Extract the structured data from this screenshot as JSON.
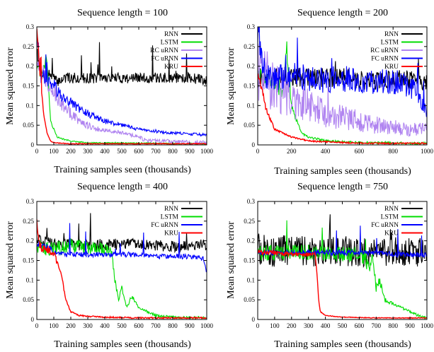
{
  "chart_data": [
    {
      "type": "line",
      "title": "Sequence length = 100",
      "xlabel": "Training samples seen (thousands)",
      "ylabel": "Mean squared error",
      "xlim": [
        0,
        1000
      ],
      "ylim": [
        0,
        0.3
      ],
      "xticks": [
        "0",
        "100",
        "200",
        "300",
        "400",
        "500",
        "600",
        "700",
        "800",
        "900",
        "1000"
      ],
      "yticks": [
        "0",
        "0.05",
        "0.1",
        "0.15",
        "0.2",
        "0.25",
        "0.3"
      ],
      "legend_position": "top-right",
      "series": [
        {
          "name": "RNN",
          "color": "#000000",
          "x": [
            0,
            15,
            40,
            80,
            120,
            160,
            200,
            300,
            400,
            500,
            600,
            700,
            800,
            900,
            1000
          ],
          "y": [
            0.25,
            0.2,
            0.18,
            0.18,
            0.16,
            0.17,
            0.17,
            0.17,
            0.17,
            0.17,
            0.17,
            0.17,
            0.17,
            0.17,
            0.165
          ],
          "noise": 0.008
        },
        {
          "name": "LSTM",
          "color": "#00dd00",
          "x": [
            0,
            30,
            55,
            70,
            80,
            100,
            120,
            150,
            200,
            300,
            400,
            500,
            600,
            700,
            800,
            900,
            1000
          ],
          "y": [
            0.2,
            0.17,
            0.22,
            0.15,
            0.06,
            0.04,
            0.02,
            0.015,
            0.01,
            0.005,
            0.005,
            0.005,
            0.004,
            0.004,
            0.003,
            0.003,
            0.003
          ],
          "noise": 0.006
        },
        {
          "name": "RC uRNN",
          "color": "#b084f0",
          "x": [
            0,
            30,
            60,
            100,
            150,
            200,
            250,
            300,
            350,
            400,
            450,
            500,
            550,
            600,
            650,
            700,
            800,
            900,
            1000
          ],
          "y": [
            0.22,
            0.18,
            0.17,
            0.14,
            0.1,
            0.08,
            0.06,
            0.05,
            0.04,
            0.04,
            0.035,
            0.03,
            0.025,
            0.02,
            0.01,
            0.01,
            0.008,
            0.006,
            0.005
          ],
          "noise": 0.018
        },
        {
          "name": "FC uRNN",
          "color": "#0000ff",
          "x": [
            0,
            20,
            50,
            100,
            150,
            200,
            250,
            300,
            350,
            400,
            450,
            500,
            550,
            600,
            650,
            700,
            800,
            900,
            1000
          ],
          "y": [
            0.3,
            0.18,
            0.17,
            0.15,
            0.12,
            0.11,
            0.09,
            0.08,
            0.07,
            0.06,
            0.055,
            0.05,
            0.045,
            0.04,
            0.035,
            0.035,
            0.03,
            0.028,
            0.025
          ],
          "noise": 0.012
        },
        {
          "name": "KRU",
          "color": "#ff0000",
          "x": [
            0,
            20,
            40,
            60,
            80,
            100,
            150,
            200,
            300,
            400,
            500,
            600,
            700,
            800,
            900,
            1000
          ],
          "y": [
            0.3,
            0.17,
            0.08,
            0.03,
            0.01,
            0.006,
            0.004,
            0.003,
            0.003,
            0.003,
            0.003,
            0.003,
            0.003,
            0.003,
            0.003,
            0.003
          ],
          "noise": 0.003
        }
      ]
    },
    {
      "type": "line",
      "title": "Sequence length = 200",
      "xlabel": "Training samples seen (thousands)",
      "ylabel": "Mean squared error",
      "xlim": [
        0,
        1000
      ],
      "ylim": [
        0,
        0.3
      ],
      "xticks": [
        "0",
        "200",
        "400",
        "600",
        "800",
        "1000"
      ],
      "yticks": [
        "0",
        "0.05",
        "0.1",
        "0.15",
        "0.2",
        "0.25",
        "0.3"
      ],
      "legend_position": "top-right",
      "series": [
        {
          "name": "RNN",
          "color": "#000000",
          "x": [
            0,
            100,
            200,
            300,
            400,
            500,
            600,
            700,
            800,
            900,
            1000
          ],
          "y": [
            0.17,
            0.17,
            0.17,
            0.17,
            0.17,
            0.17,
            0.165,
            0.165,
            0.165,
            0.165,
            0.16
          ],
          "noise": 0.015
        },
        {
          "name": "LSTM",
          "color": "#00dd00",
          "x": [
            0,
            50,
            100,
            150,
            170,
            200,
            230,
            260,
            300,
            400,
            500,
            600,
            700,
            800,
            900,
            1000
          ],
          "y": [
            0.18,
            0.17,
            0.15,
            0.13,
            0.25,
            0.1,
            0.06,
            0.03,
            0.02,
            0.01,
            0.008,
            0.006,
            0.005,
            0.005,
            0.004,
            0.004
          ],
          "noise": 0.01
        },
        {
          "name": "RC uRNN",
          "color": "#b084f0",
          "x": [
            0,
            50,
            100,
            150,
            200,
            300,
            400,
            500,
            600,
            700,
            800,
            900,
            1000
          ],
          "y": [
            0.2,
            0.17,
            0.15,
            0.13,
            0.11,
            0.1,
            0.08,
            0.07,
            0.06,
            0.05,
            0.045,
            0.04,
            0.04
          ],
          "noise": 0.045
        },
        {
          "name": "FC uRNN",
          "color": "#0000ff",
          "x": [
            0,
            50,
            100,
            200,
            300,
            400,
            500,
            600,
            700,
            800,
            900,
            950,
            1000
          ],
          "y": [
            0.28,
            0.17,
            0.17,
            0.18,
            0.17,
            0.165,
            0.17,
            0.16,
            0.16,
            0.16,
            0.15,
            0.13,
            0.08
          ],
          "noise": 0.02
        },
        {
          "name": "KRU",
          "color": "#ff0000",
          "x": [
            0,
            20,
            50,
            80,
            100,
            150,
            200,
            300,
            400,
            500,
            600,
            700,
            800,
            900,
            1000
          ],
          "y": [
            0.18,
            0.15,
            0.09,
            0.06,
            0.04,
            0.03,
            0.02,
            0.01,
            0.008,
            0.006,
            0.005,
            0.004,
            0.004,
            0.004,
            0.004
          ],
          "noise": 0.006
        }
      ]
    },
    {
      "type": "line",
      "title": "Sequence length = 400",
      "xlabel": "Training samples seen (thousands)",
      "ylabel": "Mean squared error",
      "xlim": [
        0,
        1000
      ],
      "ylim": [
        0,
        0.3
      ],
      "xticks": [
        "0",
        "100",
        "200",
        "300",
        "400",
        "500",
        "600",
        "700",
        "800",
        "900",
        "1000"
      ],
      "yticks": [
        "0",
        "0.05",
        "0.1",
        "0.15",
        "0.2",
        "0.25",
        "0.3"
      ],
      "legend_position": "top-right",
      "series": [
        {
          "name": "RNN",
          "color": "#000000",
          "x": [
            0,
            100,
            200,
            300,
            400,
            500,
            600,
            700,
            800,
            900,
            1000
          ],
          "y": [
            0.2,
            0.19,
            0.19,
            0.19,
            0.19,
            0.19,
            0.19,
            0.19,
            0.185,
            0.185,
            0.19
          ],
          "noise": 0.008
        },
        {
          "name": "LSTM",
          "color": "#00dd00",
          "x": [
            0,
            50,
            100,
            200,
            300,
            400,
            440,
            460,
            480,
            500,
            530,
            560,
            600,
            650,
            700,
            800,
            900,
            1000
          ],
          "y": [
            0.19,
            0.18,
            0.18,
            0.19,
            0.18,
            0.18,
            0.17,
            0.1,
            0.05,
            0.08,
            0.03,
            0.06,
            0.03,
            0.02,
            0.01,
            0.006,
            0.005,
            0.005
          ],
          "noise": 0.01
        },
        {
          "name": "FC uRNN",
          "color": "#0000ff",
          "x": [
            0,
            40,
            80,
            100,
            130,
            150,
            200,
            300,
            400,
            500,
            600,
            700,
            800,
            900,
            980,
            1000
          ],
          "y": [
            0.19,
            0.19,
            0.18,
            0.17,
            0.165,
            0.165,
            0.165,
            0.165,
            0.165,
            0.165,
            0.165,
            0.16,
            0.16,
            0.16,
            0.155,
            0.12
          ],
          "noise": 0.004
        },
        {
          "name": "KRU",
          "color": "#ff0000",
          "x": [
            0,
            10,
            30,
            60,
            100,
            130,
            150,
            170,
            200,
            250,
            300,
            400,
            500,
            600,
            700,
            800,
            900,
            1000
          ],
          "y": [
            0.26,
            0.2,
            0.18,
            0.18,
            0.17,
            0.13,
            0.1,
            0.05,
            0.02,
            0.01,
            0.008,
            0.006,
            0.005,
            0.004,
            0.004,
            0.004,
            0.004,
            0.004
          ],
          "noise": 0.006
        }
      ]
    },
    {
      "type": "line",
      "title": "Sequence length = 750",
      "xlabel": "Training samples seen (thousands)",
      "ylabel": "Mean squared error",
      "xlim": [
        0,
        1000
      ],
      "ylim": [
        0,
        0.3
      ],
      "xticks": [
        "0",
        "100",
        "200",
        "300",
        "400",
        "500",
        "600",
        "700",
        "800",
        "900",
        "1000"
      ],
      "yticks": [
        "0",
        "0.05",
        "0.1",
        "0.15",
        "0.2",
        "0.25",
        "0.3"
      ],
      "legend_position": "top-right",
      "series": [
        {
          "name": "RNN",
          "color": "#000000",
          "x": [
            0,
            100,
            200,
            300,
            400,
            500,
            600,
            700,
            800,
            900,
            1000
          ],
          "y": [
            0.18,
            0.17,
            0.18,
            0.17,
            0.17,
            0.175,
            0.17,
            0.17,
            0.175,
            0.17,
            0.17
          ],
          "noise": 0.022
        },
        {
          "name": "LSTM",
          "color": "#00dd00",
          "x": [
            0,
            100,
            200,
            300,
            400,
            500,
            600,
            640,
            660,
            680,
            700,
            720,
            750,
            800,
            850,
            900,
            950,
            1000
          ],
          "y": [
            0.17,
            0.17,
            0.17,
            0.17,
            0.17,
            0.165,
            0.165,
            0.15,
            0.12,
            0.16,
            0.08,
            0.1,
            0.05,
            0.04,
            0.03,
            0.02,
            0.01,
            0.005
          ],
          "noise": 0.012
        },
        {
          "name": "FC uRNN",
          "color": "#0000ff",
          "x": [
            0,
            100,
            200,
            300,
            400,
            500,
            600,
            700,
            800,
            900,
            1000
          ],
          "y": [
            0.17,
            0.17,
            0.17,
            0.17,
            0.17,
            0.17,
            0.17,
            0.17,
            0.165,
            0.165,
            0.165
          ],
          "noise": 0.004
        },
        {
          "name": "KRU",
          "color": "#ff0000",
          "x": [
            0,
            100,
            200,
            300,
            340,
            350,
            360,
            370,
            400,
            450,
            500,
            600,
            700,
            800,
            900,
            1000
          ],
          "y": [
            0.17,
            0.17,
            0.165,
            0.165,
            0.165,
            0.12,
            0.05,
            0.02,
            0.01,
            0.008,
            0.006,
            0.005,
            0.004,
            0.004,
            0.004,
            0.004
          ],
          "noise": 0.003
        }
      ]
    }
  ]
}
